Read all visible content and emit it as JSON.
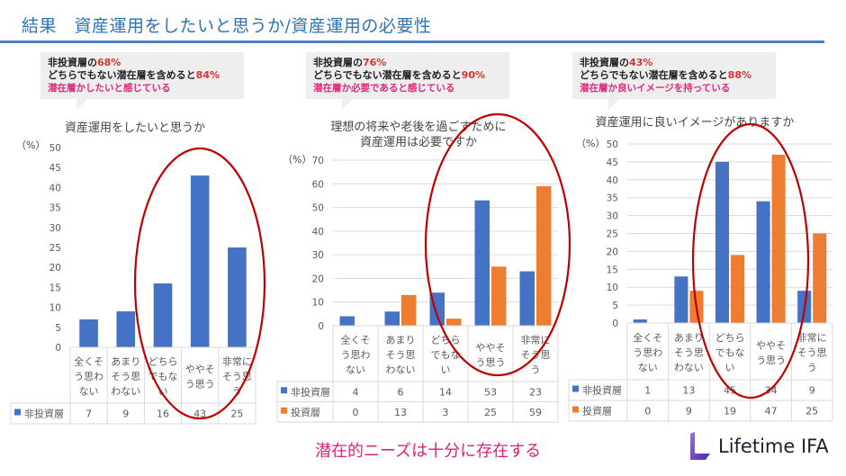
{
  "header": {
    "title": "結果　資産運用をしたいと思うか/資産運用の必要性"
  },
  "callouts": [
    {
      "line1_a": "非投資層の",
      "line1_b": "68%",
      "line2_a": "どちらでもない潜在層を含めると",
      "line2_b": "84%",
      "line3": "潜在層かしたいと感じている"
    },
    {
      "line1_a": "非投資層の",
      "line1_b": "76%",
      "line2_a": "どちらでもない潜在層を含めると",
      "line2_b": "90%",
      "line3": "潜在層か必要であると感じている"
    },
    {
      "line1_a": "非投資層の",
      "line1_b": "43%",
      "line2_a": "どちらでもない潜在層を含めると",
      "line2_b": "88%",
      "line3": "潜在層か良いイメージを持っている"
    }
  ],
  "colors": {
    "non_investor": "#4472c4",
    "investor": "#ed7d31",
    "highlight_ellipse": "#c00000",
    "accent": "#e0207a"
  },
  "chart_data": [
    {
      "type": "bar",
      "title": [
        "資産運用をしたいと思うか"
      ],
      "ylabel": "（%）",
      "ylim": [
        0,
        50
      ],
      "yticks": [
        0,
        5,
        10,
        15,
        20,
        25,
        30,
        35,
        40,
        45,
        50
      ],
      "grid": false,
      "categories": [
        [
          "全くそ",
          "う思わ",
          "ない"
        ],
        [
          "あまり",
          "そう思",
          "わない"
        ],
        [
          "どちら",
          "でもな",
          "い"
        ],
        [
          "ややそ",
          "う思う"
        ],
        [
          "非常に",
          "そう思",
          "う"
        ]
      ],
      "series": [
        {
          "name": "非投資層",
          "values": [
            7,
            9,
            16,
            43,
            25
          ]
        }
      ],
      "data_table": true,
      "highlight": "categories 3-5 circled"
    },
    {
      "type": "bar",
      "title": [
        "理想の将来や老後を過ごすために",
        "資産運用は必要ですか"
      ],
      "ylabel": "（%）",
      "ylim": [
        0,
        70
      ],
      "yticks": [
        0,
        10,
        20,
        30,
        40,
        50,
        60,
        70
      ],
      "grid": true,
      "categories": [
        [
          "全くそ",
          "う思わ",
          "ない"
        ],
        [
          "あまり",
          "そう思",
          "わない"
        ],
        [
          "どちら",
          "でもな",
          "い"
        ],
        [
          "ややそ",
          "う思う"
        ],
        [
          "非常に",
          "そう思",
          "う"
        ]
      ],
      "series": [
        {
          "name": "非投資層",
          "values": [
            4,
            6,
            14,
            53,
            23
          ]
        },
        {
          "name": "投資層",
          "values": [
            0,
            13,
            3,
            25,
            59
          ]
        }
      ],
      "data_table": true,
      "highlight": "categories 3-5 circled"
    },
    {
      "type": "bar",
      "title": [
        "資産運用に良いイメージがありますか"
      ],
      "ylabel": "（%）",
      "ylim": [
        0,
        50
      ],
      "yticks": [
        0,
        5,
        10,
        15,
        20,
        25,
        30,
        35,
        40,
        45,
        50
      ],
      "grid": true,
      "categories": [
        [
          "全くそ",
          "う思わ",
          "ない"
        ],
        [
          "あまり",
          "そう思",
          "わない"
        ],
        [
          "どちら",
          "でもな",
          "い"
        ],
        [
          "ややそ",
          "う思う"
        ],
        [
          "非常に",
          "そう思",
          "う"
        ]
      ],
      "series": [
        {
          "name": "非投資層",
          "values": [
            1,
            13,
            45,
            34,
            9
          ]
        },
        {
          "name": "投資層",
          "values": [
            0,
            9,
            19,
            47,
            25
          ]
        }
      ],
      "data_table": true,
      "highlight": "categories 3-4 circled"
    }
  ],
  "footer": {
    "message": "潜在的ニーズは十分に存在する",
    "logo_text": "Lifetime IFA"
  }
}
